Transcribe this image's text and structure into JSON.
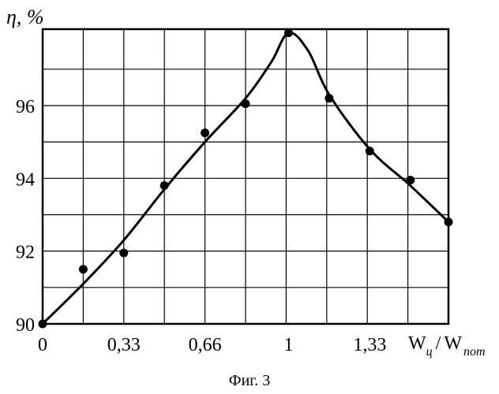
{
  "chart_data": {
    "type": "scatter",
    "title": "",
    "ylabel": "η, %",
    "xlabel": {
      "main": "W",
      "sub": "ц",
      "slash": "/",
      "main2": "W",
      "sub2": "пот"
    },
    "x_ticks": [
      {
        "value": 0,
        "label": "0"
      },
      {
        "value": 0.33,
        "label": "0,33"
      },
      {
        "value": 0.66,
        "label": "0,66"
      },
      {
        "value": 1,
        "label": "1"
      },
      {
        "value": 1.33,
        "label": "1,33"
      }
    ],
    "y_ticks": [
      {
        "value": 90,
        "label": "90"
      },
      {
        "value": 92,
        "label": "92"
      },
      {
        "value": 94,
        "label": "94"
      },
      {
        "value": 96,
        "label": "96"
      }
    ],
    "xlim": [
      0,
      1.65
    ],
    "ylim": [
      90,
      98.1
    ],
    "grid": true,
    "series": [
      {
        "points": [
          {
            "x": 0,
            "y": 90.0
          },
          {
            "x": 0.165,
            "y": 91.5
          },
          {
            "x": 0.33,
            "y": 91.95
          },
          {
            "x": 0.495,
            "y": 93.8
          },
          {
            "x": 0.66,
            "y": 95.25
          },
          {
            "x": 0.825,
            "y": 96.05
          },
          {
            "x": 1.0,
            "y": 98.0
          },
          {
            "x": 1.165,
            "y": 96.2
          },
          {
            "x": 1.33,
            "y": 94.75
          },
          {
            "x": 1.495,
            "y": 93.95
          },
          {
            "x": 1.65,
            "y": 92.8
          }
        ]
      }
    ],
    "fit_curve": [
      {
        "x": 0,
        "y": 90.0
      },
      {
        "x": 0.165,
        "y": 91.1
      },
      {
        "x": 0.33,
        "y": 92.3
      },
      {
        "x": 0.495,
        "y": 93.7
      },
      {
        "x": 0.66,
        "y": 95.0
      },
      {
        "x": 0.825,
        "y": 96.2
      },
      {
        "x": 0.93,
        "y": 97.2
      },
      {
        "x": 1.0,
        "y": 98.0
      },
      {
        "x": 1.08,
        "y": 97.5
      },
      {
        "x": 1.165,
        "y": 96.3
      },
      {
        "x": 1.33,
        "y": 94.8
      },
      {
        "x": 1.495,
        "y": 93.8
      },
      {
        "x": 1.65,
        "y": 92.8
      }
    ]
  },
  "caption": "Фиг. 3"
}
